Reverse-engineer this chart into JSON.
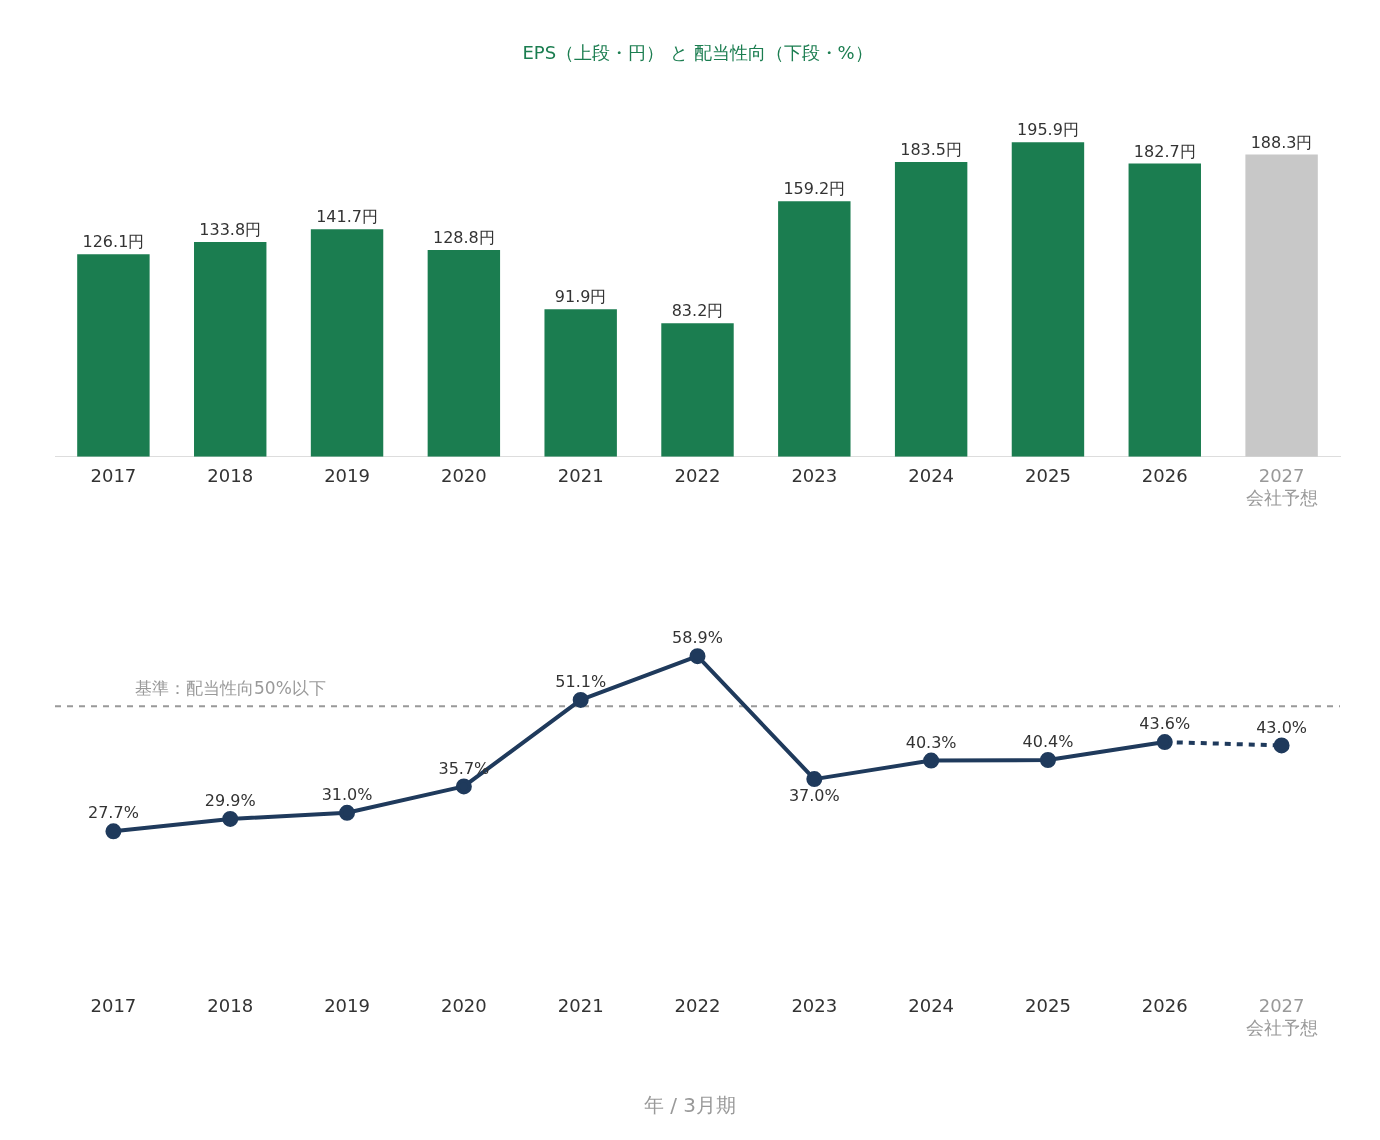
{
  "chart_data": [
    {
      "type": "bar",
      "title": "EPS（上段・円） と 配当性向（下段・%）",
      "categories": [
        "2017",
        "2018",
        "2019",
        "2020",
        "2021",
        "2022",
        "2023",
        "2024",
        "2025",
        "2026",
        "2027\n会社予想"
      ],
      "values": [
        126.1,
        133.8,
        141.7,
        128.8,
        91.9,
        83.2,
        159.2,
        183.5,
        195.9,
        182.7,
        188.3
      ],
      "colors": [
        "#1b7d50",
        "#1b7d50",
        "#1b7d50",
        "#1b7d50",
        "#1b7d50",
        "#1b7d50",
        "#1b7d50",
        "#1b7d50",
        "#1b7d50",
        "#1b7d50",
        "#c8c8c8"
      ],
      "value_labels": [
        "126.1円",
        "133.8円",
        "141.7円",
        "128.8円",
        "91.9円",
        "83.2円",
        "159.2円",
        "183.5円",
        "195.9円",
        "182.7円",
        "188.3円"
      ],
      "legend": false
    },
    {
      "type": "line",
      "xlabel": "年 / 3月期",
      "categories": [
        "2017",
        "2018",
        "2019",
        "2020",
        "2021",
        "2022",
        "2023",
        "2024",
        "2025",
        "2026",
        "2027\n会社予想"
      ],
      "series": [
        {
          "color": "#1f3a5c",
          "values": [
            27.7,
            29.9,
            31.0,
            35.7,
            51.1,
            58.9,
            37.0,
            40.3,
            40.4,
            43.6,
            null
          ],
          "value_labels": [
            "27.7%",
            "29.9%",
            "31.0%",
            "35.7%",
            "51.1%",
            "58.9%",
            "37.0%",
            "40.3%",
            "40.4%",
            "43.6%",
            null
          ]
        },
        {
          "color": "#1f3a5c",
          "line_style": "dashed",
          "values": [
            null,
            null,
            null,
            null,
            null,
            null,
            null,
            null,
            null,
            43.6,
            43.0
          ],
          "value_labels": [
            null,
            null,
            null,
            null,
            null,
            null,
            null,
            null,
            null,
            null,
            "43.0%"
          ]
        }
      ],
      "marker": "circle",
      "ref_lines": [
        {
          "axis": "y",
          "value": 50,
          "label": "基準：配当性向50%以下",
          "color": "#999999",
          "line_style": "dashed"
        }
      ],
      "legend": false
    }
  ]
}
